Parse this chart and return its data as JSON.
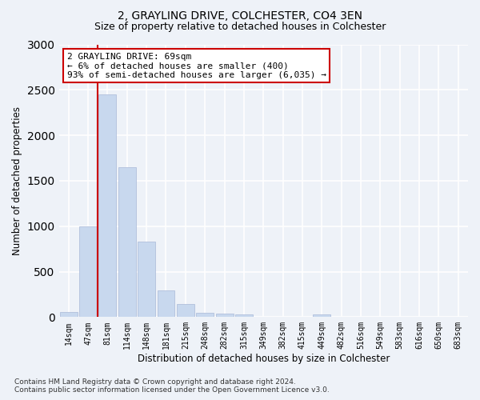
{
  "title": "2, GRAYLING DRIVE, COLCHESTER, CO4 3EN",
  "subtitle": "Size of property relative to detached houses in Colchester",
  "xlabel": "Distribution of detached houses by size in Colchester",
  "ylabel": "Number of detached properties",
  "bar_color": "#c8d8ee",
  "bar_edge_color": "#a8b8d8",
  "categories": [
    "14sqm",
    "47sqm",
    "81sqm",
    "114sqm",
    "148sqm",
    "181sqm",
    "215sqm",
    "248sqm",
    "282sqm",
    "315sqm",
    "349sqm",
    "382sqm",
    "415sqm",
    "449sqm",
    "482sqm",
    "516sqm",
    "549sqm",
    "583sqm",
    "616sqm",
    "650sqm",
    "683sqm"
  ],
  "values": [
    55,
    1000,
    2450,
    1650,
    830,
    290,
    145,
    50,
    35,
    25,
    0,
    0,
    0,
    30,
    0,
    0,
    0,
    0,
    0,
    0,
    0
  ],
  "ylim": [
    0,
    3000
  ],
  "yticks": [
    0,
    500,
    1000,
    1500,
    2000,
    2500,
    3000
  ],
  "vline_x": 1.5,
  "annotation_text": "2 GRAYLING DRIVE: 69sqm\n← 6% of detached houses are smaller (400)\n93% of semi-detached houses are larger (6,035) →",
  "annotation_box_color": "#ffffff",
  "annotation_box_edge": "#cc0000",
  "vline_color": "#cc0000",
  "footer": "Contains HM Land Registry data © Crown copyright and database right 2024.\nContains public sector information licensed under the Open Government Licence v3.0.",
  "background_color": "#eef2f8",
  "grid_color": "#ffffff",
  "title_fontsize": 10,
  "subtitle_fontsize": 9
}
